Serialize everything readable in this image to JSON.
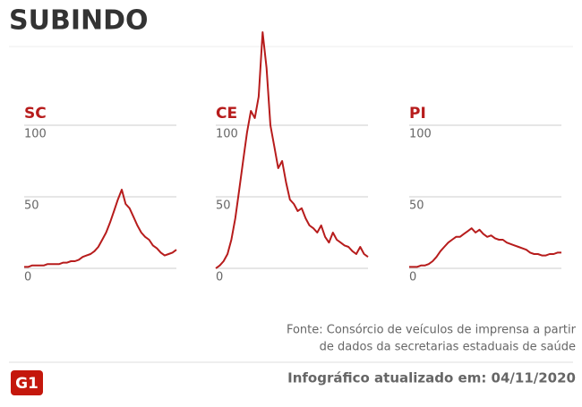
{
  "header": {
    "title": "SUBINDO"
  },
  "chart_data": [
    {
      "type": "line",
      "title": "SC",
      "color": "#b71c1c",
      "ylim": [
        0,
        100
      ],
      "yticks": [
        0,
        50,
        100
      ],
      "grid": true,
      "values": [
        1,
        1,
        2,
        2,
        2,
        2,
        3,
        3,
        3,
        3,
        4,
        4,
        5,
        5,
        6,
        8,
        9,
        10,
        12,
        15,
        20,
        25,
        32,
        40,
        48,
        55,
        45,
        42,
        36,
        30,
        25,
        22,
        20,
        16,
        14,
        11,
        9,
        10,
        11,
        13
      ]
    },
    {
      "type": "line",
      "title": "CE",
      "color": "#b71c1c",
      "ylim": [
        0,
        100
      ],
      "yticks": [
        0,
        50,
        100
      ],
      "grid": true,
      "values": [
        0,
        2,
        5,
        10,
        20,
        35,
        55,
        75,
        95,
        110,
        105,
        120,
        165,
        140,
        100,
        85,
        70,
        75,
        60,
        48,
        45,
        40,
        42,
        35,
        30,
        28,
        25,
        30,
        22,
        18,
        25,
        20,
        18,
        16,
        15,
        12,
        10,
        15,
        10,
        8
      ]
    },
    {
      "type": "line",
      "title": "PI",
      "color": "#b71c1c",
      "ylim": [
        0,
        100
      ],
      "yticks": [
        0,
        50,
        100
      ],
      "grid": true,
      "values": [
        1,
        1,
        1,
        2,
        2,
        3,
        5,
        8,
        12,
        15,
        18,
        20,
        22,
        22,
        24,
        26,
        28,
        25,
        27,
        24,
        22,
        23,
        21,
        20,
        20,
        18,
        17,
        16,
        15,
        14,
        13,
        11,
        10,
        10,
        9,
        9,
        10,
        10,
        11,
        11
      ]
    }
  ],
  "footer": {
    "source": [
      "Fonte: Consórcio de veículos de imprensa a partir",
      "de dados da secretarias estaduais de saúde"
    ],
    "logo": "G1",
    "updated": "Infográfico atualizado em: 04/11/2020"
  }
}
